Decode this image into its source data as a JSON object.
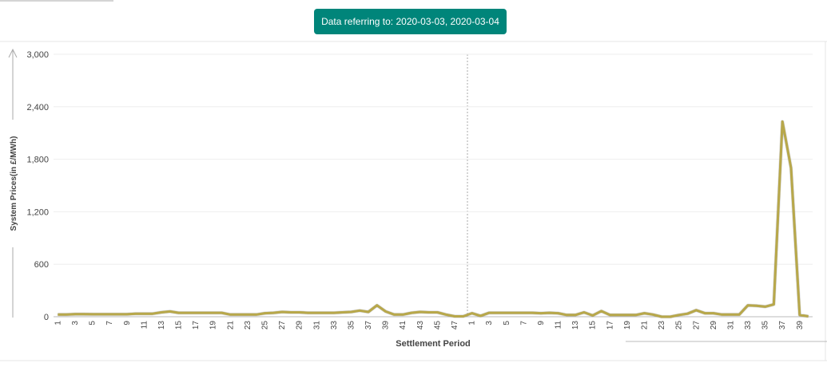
{
  "chart_data": {
    "type": "line",
    "title": "Data referring to: 2020-03-03, 2020-03-04",
    "x_label": "Settlement Period",
    "y_label": "System Prices(in £/MWh)",
    "color": "#b8a84a",
    "grid": true,
    "ylim": [
      0,
      3000
    ],
    "yticks": [
      0,
      600,
      {
        "value": 1200,
        "label": "1,200"
      },
      {
        "value": 1800,
        "label": "1,800"
      },
      {
        "value": 2400,
        "label": "2,400"
      },
      {
        "value": 3000,
        "label": "3,000"
      }
    ],
    "categories": [
      "1",
      null,
      "3",
      null,
      "5",
      null,
      "7",
      null,
      "9",
      null,
      "11",
      null,
      "13",
      null,
      "15",
      null,
      "17",
      null,
      "19",
      null,
      "21",
      null,
      "23",
      null,
      "25",
      null,
      "27",
      null,
      "29",
      null,
      "31",
      null,
      "33",
      null,
      "35",
      null,
      "37",
      null,
      "39",
      null,
      "41",
      null,
      "43",
      null,
      "45",
      null,
      "47",
      null,
      "1",
      null,
      "3",
      null,
      "5",
      null,
      "7",
      null,
      "9",
      null,
      "11",
      null,
      "13",
      null,
      "15",
      null,
      "17",
      null,
      "19",
      null,
      "21",
      null,
      "23",
      null,
      "25",
      null,
      "27",
      null,
      "29",
      null,
      "31",
      null,
      "33",
      null,
      "35",
      null,
      "37",
      null,
      "39",
      null
    ],
    "values": [
      25,
      25,
      30,
      30,
      28,
      28,
      28,
      28,
      28,
      35,
      35,
      35,
      50,
      60,
      45,
      45,
      45,
      45,
      45,
      45,
      25,
      25,
      25,
      25,
      40,
      45,
      55,
      50,
      50,
      45,
      45,
      45,
      45,
      50,
      55,
      70,
      55,
      130,
      60,
      25,
      25,
      45,
      55,
      50,
      50,
      25,
      5,
      5,
      40,
      10,
      45,
      45,
      45,
      45,
      45,
      45,
      40,
      45,
      40,
      20,
      20,
      50,
      15,
      65,
      20,
      20,
      20,
      20,
      40,
      25,
      0,
      0,
      20,
      35,
      75,
      40,
      40,
      25,
      25,
      25,
      130,
      125,
      115,
      140,
      2230,
      1700,
      20,
      5
    ]
  }
}
